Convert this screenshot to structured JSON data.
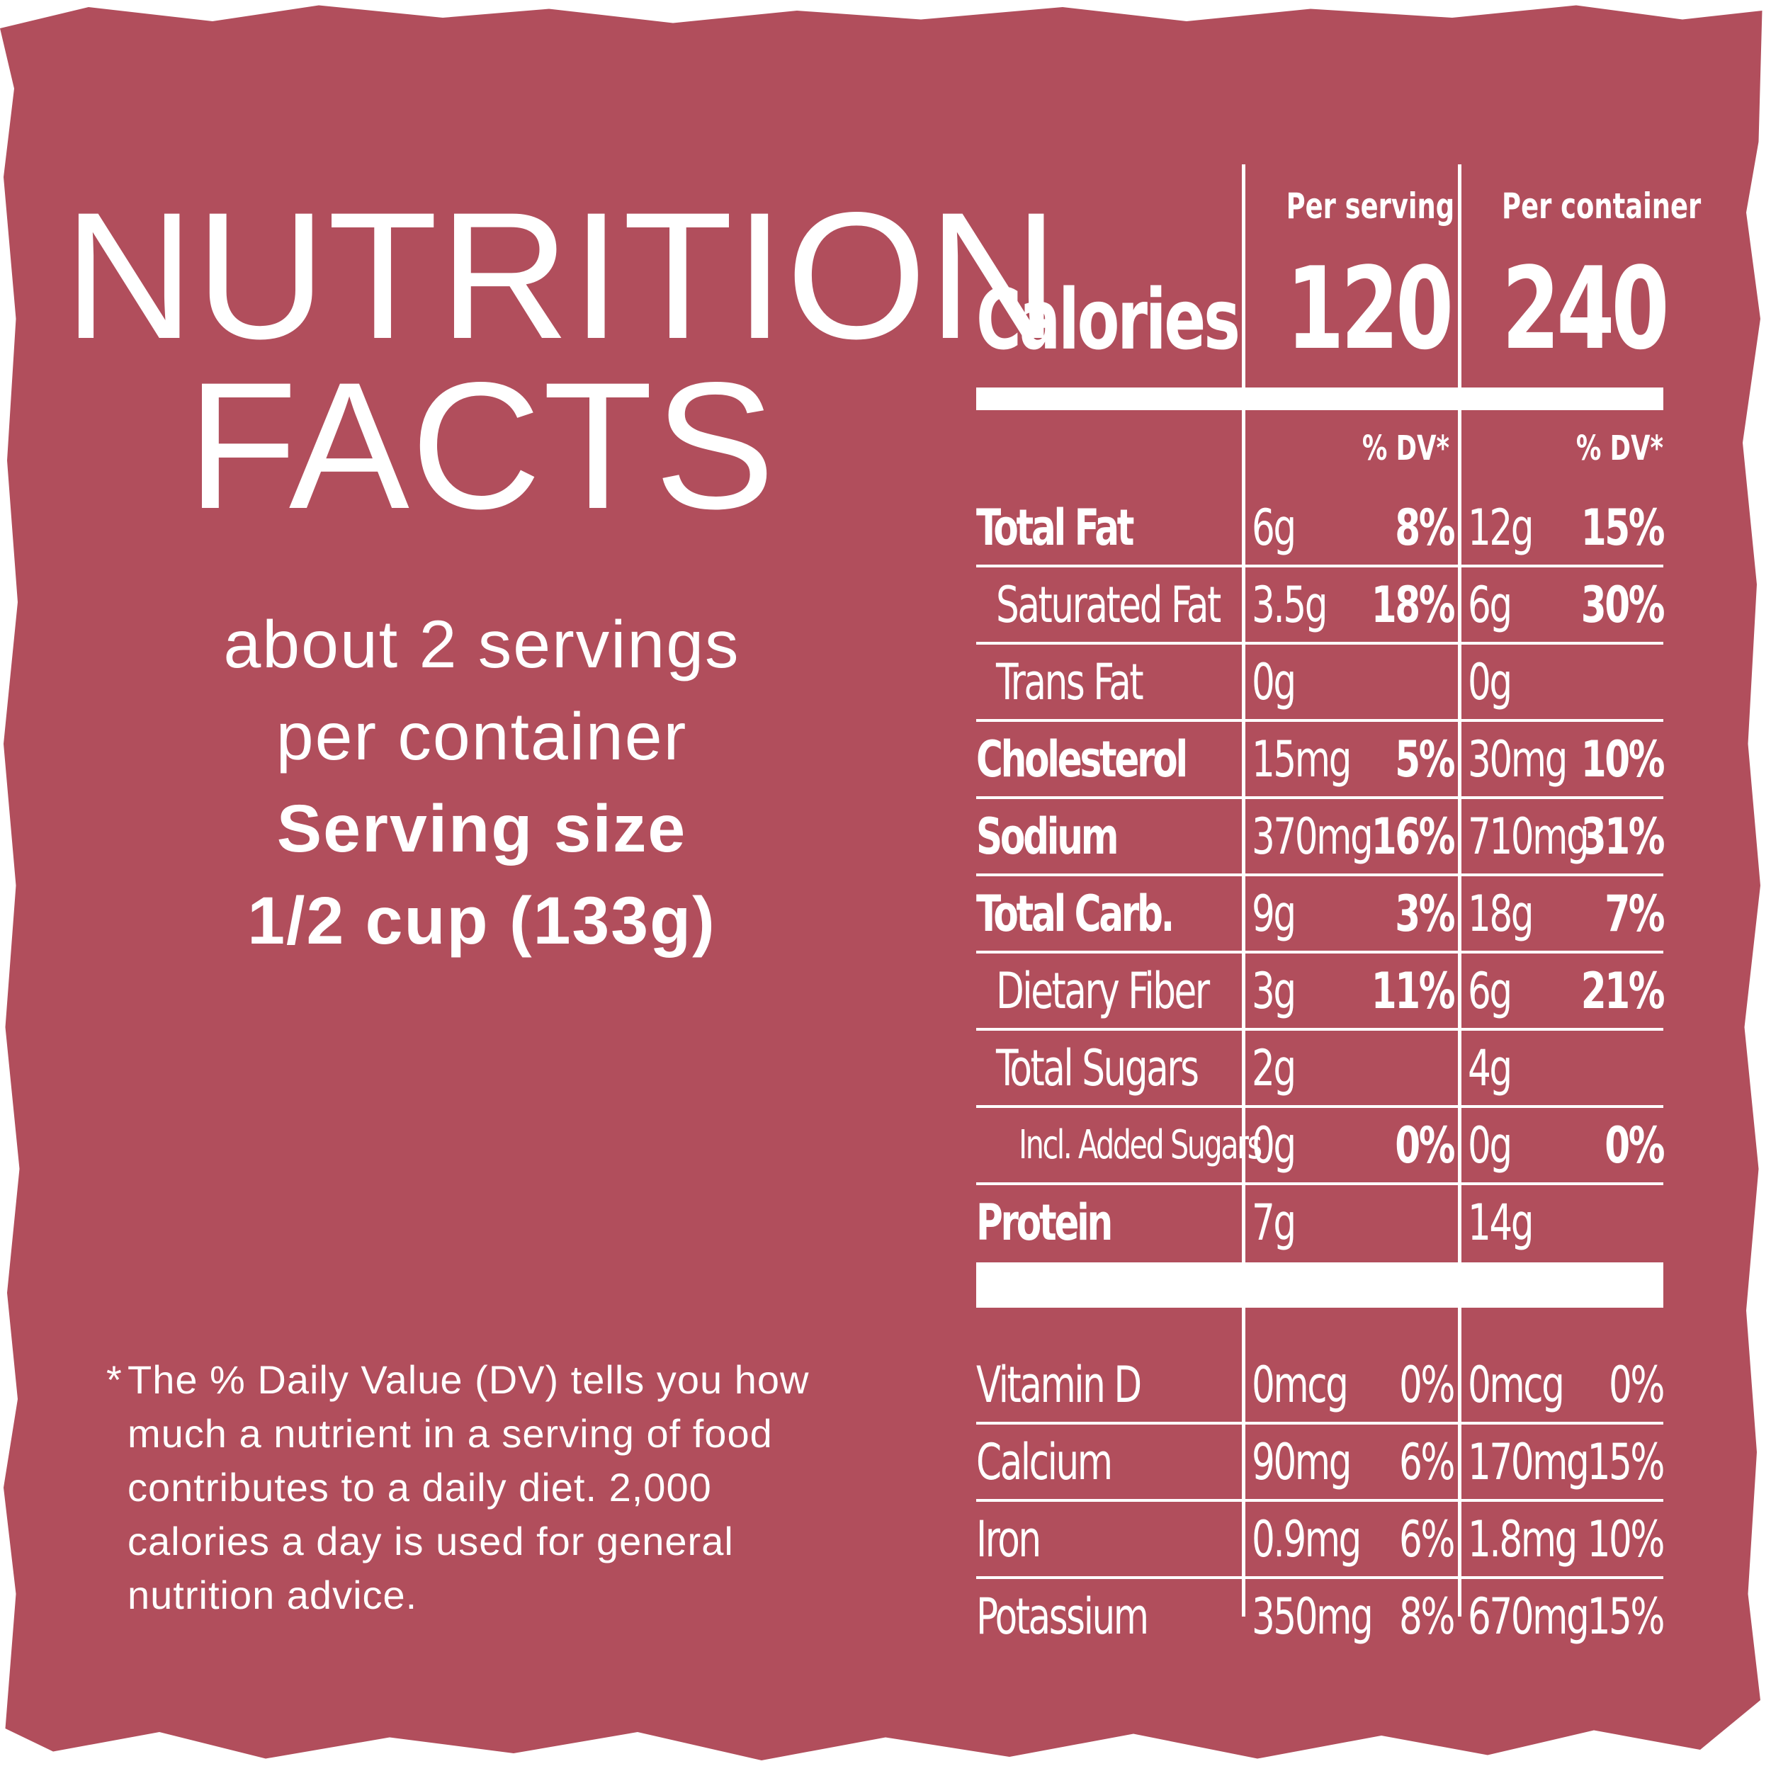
{
  "title": [
    "NUTRITION",
    "FACTS"
  ],
  "servings_per_container": [
    "about 2 servings",
    "per container"
  ],
  "serving_size": [
    "Serving size",
    "1/2 cup (133g)"
  ],
  "footnote": {
    "star": "*",
    "lines": [
      "The % Daily Value (DV) tells you how",
      "much a nutrient in a serving of food",
      "contributes to a daily diet. 2,000",
      "calories a day is used for general",
      "nutrition advice."
    ]
  },
  "table": {
    "col_headers": [
      "Per serving",
      "Per container"
    ],
    "calories": {
      "label": "Calories",
      "per_serving": "120",
      "per_container": "240"
    },
    "dv_header": "% DV*",
    "rows": [
      {
        "name": "Total Fat",
        "bold": true,
        "indent": 0,
        "s_amt": "6g",
        "s_dv": "8%",
        "c_amt": "12g",
        "c_dv": "15%"
      },
      {
        "name": "Saturated Fat",
        "bold": false,
        "indent": 1,
        "s_amt": "3.5g",
        "s_dv": "18%",
        "c_amt": "6g",
        "c_dv": "30%"
      },
      {
        "name": "Trans Fat",
        "bold": false,
        "indent": 1,
        "s_amt": "0g",
        "s_dv": "",
        "c_amt": "0g",
        "c_dv": ""
      },
      {
        "name": "Cholesterol",
        "bold": true,
        "indent": 0,
        "s_amt": "15mg",
        "s_dv": "5%",
        "c_amt": "30mg",
        "c_dv": "10%"
      },
      {
        "name": "Sodium",
        "bold": true,
        "indent": 0,
        "s_amt": "370mg",
        "s_dv": "16%",
        "c_amt": "710mg",
        "c_dv": "31%"
      },
      {
        "name": "Total Carb.",
        "bold": true,
        "indent": 0,
        "s_amt": "9g",
        "s_dv": "3%",
        "c_amt": "18g",
        "c_dv": "7%"
      },
      {
        "name": "Dietary Fiber",
        "bold": false,
        "indent": 1,
        "s_amt": "3g",
        "s_dv": "11%",
        "c_amt": "6g",
        "c_dv": "21%"
      },
      {
        "name": "Total Sugars",
        "bold": false,
        "indent": 1,
        "s_amt": "2g",
        "s_dv": "",
        "c_amt": "4g",
        "c_dv": ""
      },
      {
        "name": "Incl. Added Sugars",
        "bold": false,
        "indent": 2,
        "s_amt": "0g",
        "s_dv": "0%",
        "c_amt": "0g",
        "c_dv": "0%"
      },
      {
        "name": "Protein",
        "bold": true,
        "indent": 0,
        "s_amt": "7g",
        "s_dv": "",
        "c_amt": "14g",
        "c_dv": ""
      }
    ],
    "vitamins": [
      {
        "name": "Vitamin D",
        "s_amt": "0mcg",
        "s_dv": "0%",
        "c_amt": "0mcg",
        "c_dv": "0%"
      },
      {
        "name": "Calcium",
        "s_amt": "90mg",
        "s_dv": "6%",
        "c_amt": "170mg",
        "c_dv": "15%"
      },
      {
        "name": "Iron",
        "s_amt": "0.9mg",
        "s_dv": "6%",
        "c_amt": "1.8mg",
        "c_dv": "10%"
      },
      {
        "name": "Potassium",
        "s_amt": "350mg",
        "s_dv": "8%",
        "c_amt": "670mg",
        "c_dv": "15%"
      }
    ]
  },
  "colors": {
    "background": "#b14e5c",
    "text": "#ffffff"
  }
}
